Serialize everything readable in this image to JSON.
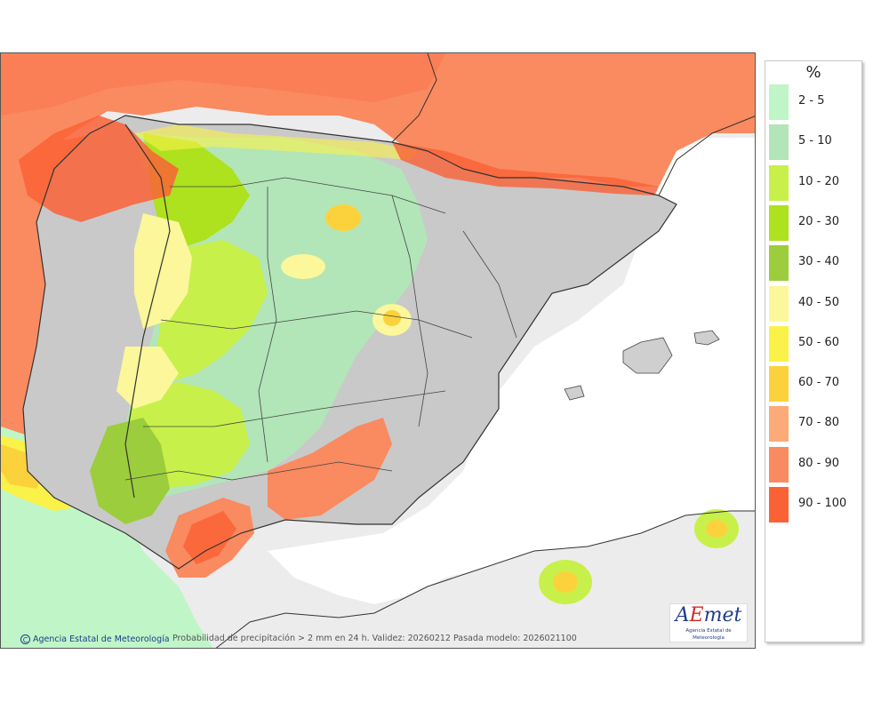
{
  "legend": {
    "title": "%",
    "items": [
      {
        "label": "2 - 5",
        "color": "#c0f5c8"
      },
      {
        "label": "5 - 10",
        "color": "#b2e6b8"
      },
      {
        "label": "10 - 20",
        "color": "#c8f04a"
      },
      {
        "label": "20 - 30",
        "color": "#aee11e"
      },
      {
        "label": "30 - 40",
        "color": "#9ccd3c"
      },
      {
        "label": "40 - 50",
        "color": "#fbf79a"
      },
      {
        "label": "50 - 60",
        "color": "#faf248"
      },
      {
        "label": "60 - 70",
        "color": "#fcd23c"
      },
      {
        "label": "70 - 80",
        "color": "#fcaa78"
      },
      {
        "label": "80 - 90",
        "color": "#fa8a60"
      },
      {
        "label": "90 - 100",
        "color": "#fa6236"
      }
    ]
  },
  "footer": {
    "copyright_symbol": "C",
    "agency": "Agencia Estatal de Meteorología",
    "caption": "Probabilidad de precipitación > 2 mm en 24 h. Validez: 20260212 Pasada modelo: 2026021100"
  },
  "logo": {
    "word_prefix": "A",
    "word_accent": "E",
    "word_suffix": "met",
    "subtitle": "Agencia Estatal de Meteorología"
  },
  "icons": {
    "copyright": "copyright-icon",
    "logo": "aemet-logo"
  }
}
